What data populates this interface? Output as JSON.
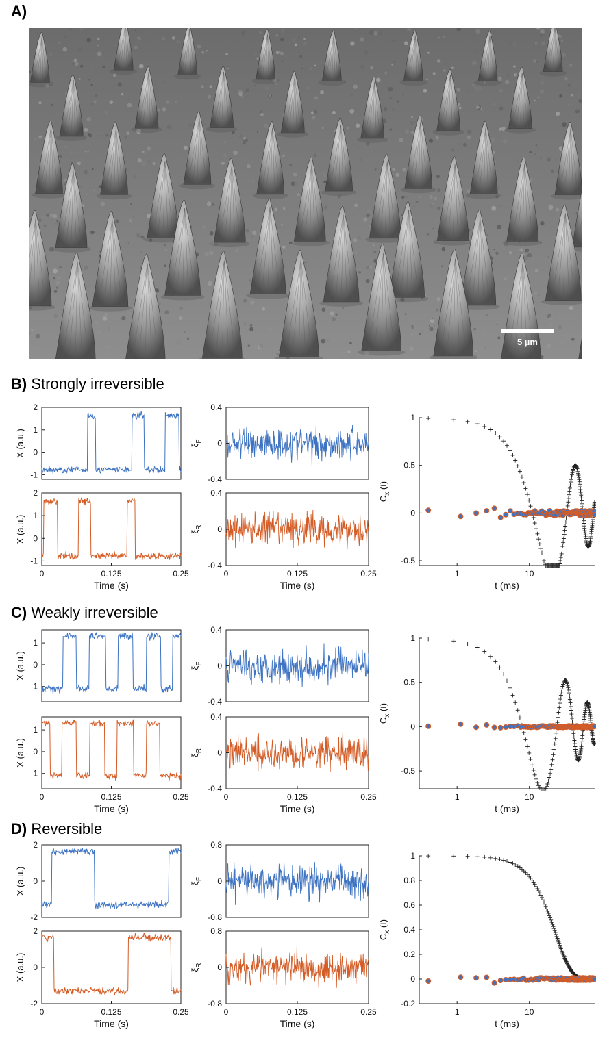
{
  "panels": {
    "a": "A)",
    "b": "B)",
    "b_title": "Strongly irreversible",
    "c": "C)",
    "c_title": "Weakly irreversible",
    "d": "D)",
    "d_title": "Reversible"
  },
  "micrograph": {
    "scale_bar_label": "5 µm"
  },
  "colors": {
    "forward": "#3d73c2",
    "reverse": "#d45c26",
    "model": "#222222"
  },
  "labels": {
    "x_axis_label": "X (a.u.)",
    "time_label": "Time (s)",
    "xi_f": "F",
    "xi_r": "R",
    "corr_label": "C",
    "corr_sub": "x",
    "corr_suffix": " (t)",
    "t_label": "t (ms)"
  },
  "chart_data": [
    {
      "panel": "B",
      "type": "line",
      "x_ticks": [
        "0",
        "0.125",
        "0.25"
      ],
      "trace_X": {
        "ylim": [
          -1.2,
          2.0
        ],
        "y_ticks": [
          "2",
          "1",
          "0",
          "-1"
        ]
      },
      "noise": {
        "ylim": [
          -0.4,
          0.4
        ],
        "y_ticks": [
          "0.4",
          "0",
          "-0.4"
        ]
      },
      "switch_times_s": [
        [
          0.082,
          0.097
        ],
        [
          0.162,
          0.184
        ],
        [
          0.222,
          0.247
        ]
      ],
      "corr": {
        "type": "scatter",
        "xscale": "log",
        "ylim": [
          -0.55,
          1.0
        ],
        "y_ticks": [
          "1",
          "0.5",
          "0",
          "-0.5"
        ],
        "x_ticks": [
          "1",
          "10"
        ],
        "model_decay_ms": 18,
        "model_period_ms": 44
      }
    },
    {
      "panel": "C",
      "type": "line",
      "x_ticks": [
        "0",
        "0.125",
        "0.25"
      ],
      "trace_X": {
        "ylim": [
          -1.7,
          1.6
        ],
        "y_ticks": [
          "1",
          "0",
          "-1"
        ]
      },
      "noise": {
        "ylim": [
          -0.4,
          0.4
        ],
        "y_ticks": [
          "0.4",
          "0",
          "-0.4"
        ]
      },
      "switch_times_s": [
        [
          0.038,
          0.062
        ],
        [
          0.085,
          0.115
        ],
        [
          0.137,
          0.164
        ],
        [
          0.188,
          0.214
        ],
        [
          0.235,
          0.25
        ]
      ],
      "corr": {
        "type": "scatter",
        "xscale": "log",
        "ylim": [
          -0.7,
          1.0
        ],
        "y_ticks": [
          "1",
          "0.5",
          "0",
          "-0.5"
        ],
        "x_ticks": [
          "1",
          "10"
        ],
        "model_decay_ms": 14,
        "model_period_ms": 32
      }
    },
    {
      "panel": "D",
      "type": "line",
      "x_ticks": [
        "0",
        "0.125",
        "0.25"
      ],
      "trace_X": {
        "ylim": [
          -2.0,
          2.0
        ],
        "y_ticks": [
          "2",
          "0",
          "-2"
        ]
      },
      "noise": {
        "ylim": [
          -0.8,
          0.8
        ],
        "y_ticks": [
          "0.8",
          "0",
          "-0.8"
        ]
      },
      "switch_times_s": [
        [
          0.018,
          0.095
        ],
        [
          0.228,
          0.25
        ]
      ],
      "corr": {
        "type": "scatter",
        "xscale": "log",
        "ylim": [
          -0.2,
          1.0
        ],
        "y_ticks": [
          "1",
          "0.8",
          "0.6",
          "0.4",
          "0.2",
          "0",
          "-0.2"
        ],
        "x_ticks": [
          "1",
          "10"
        ],
        "model_decay_ms": 22,
        "model_period_ms": 0
      }
    }
  ]
}
